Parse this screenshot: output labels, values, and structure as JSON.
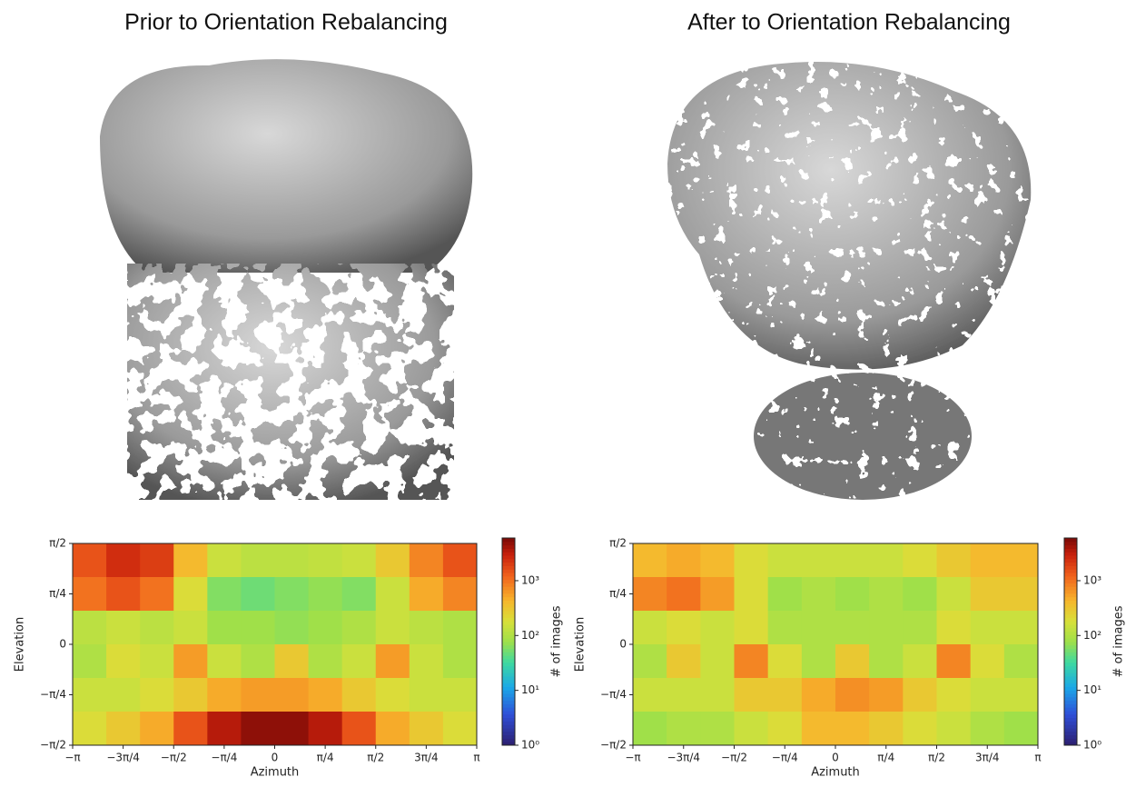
{
  "chart_data": [
    {
      "type": "heatmap",
      "title": "Prior to Orientation Rebalancing",
      "xlabel": "Azimuth",
      "ylabel": "Elevation",
      "colorbar_label": "# of images",
      "colormap": "turbo-like",
      "log_color": true,
      "clim": [
        1,
        6000
      ],
      "xlim": [
        -3.1416,
        3.1416
      ],
      "ylim": [
        -1.5708,
        1.5708
      ],
      "xticks": [
        {
          "value": -3.1416,
          "label": "−π"
        },
        {
          "value": -2.3562,
          "label": "−3π/4"
        },
        {
          "value": -1.5708,
          "label": "−π/2"
        },
        {
          "value": -0.7854,
          "label": "−π/4"
        },
        0,
        {
          "value": 0.7854,
          "label": "π/4"
        },
        {
          "value": 1.5708,
          "label": "π/2"
        },
        {
          "value": 2.3562,
          "label": "3π/4"
        },
        {
          "value": 3.1416,
          "label": "π"
        }
      ],
      "yticks": [
        {
          "value": -1.5708,
          "label": "−π/2"
        },
        {
          "value": -0.7854,
          "label": "−π/4"
        },
        0,
        {
          "value": 0.7854,
          "label": "π/4"
        },
        {
          "value": 1.5708,
          "label": "π/2"
        }
      ],
      "cticks": [
        {
          "value": 1,
          "label": "10⁰"
        },
        {
          "value": 10,
          "label": "10¹"
        },
        {
          "value": 100,
          "label": "10²"
        },
        {
          "value": 1000,
          "label": "10³"
        }
      ],
      "values": [
        [
          1500,
          2500,
          2000,
          400,
          150,
          120,
          120,
          130,
          150,
          300,
          800,
          1500
        ],
        [
          1000,
          1500,
          1000,
          200,
          60,
          50,
          60,
          70,
          60,
          150,
          500,
          800
        ],
        [
          120,
          150,
          120,
          150,
          80,
          80,
          70,
          80,
          100,
          150,
          120,
          100
        ],
        [
          100,
          200,
          150,
          600,
          150,
          100,
          300,
          100,
          150,
          600,
          150,
          100
        ],
        [
          150,
          150,
          200,
          300,
          500,
          600,
          600,
          500,
          300,
          200,
          150,
          150
        ],
        [
          200,
          300,
          500,
          1500,
          3500,
          5000,
          5000,
          3500,
          1500,
          500,
          300,
          200
        ]
      ]
    },
    {
      "type": "heatmap",
      "title": "After to Orientation Rebalancing",
      "xlabel": "Azimuth",
      "ylabel": "Elevation",
      "colorbar_label": "# of images",
      "colormap": "turbo-like",
      "log_color": true,
      "clim": [
        1,
        6000
      ],
      "xlim": [
        -3.1416,
        3.1416
      ],
      "ylim": [
        -1.5708,
        1.5708
      ],
      "xticks": [
        {
          "value": -3.1416,
          "label": "−π"
        },
        {
          "value": -2.3562,
          "label": "−3π/4"
        },
        {
          "value": -1.5708,
          "label": "−π/2"
        },
        {
          "value": -0.7854,
          "label": "−π/4"
        },
        0,
        {
          "value": 0.7854,
          "label": "π/4"
        },
        {
          "value": 1.5708,
          "label": "π/2"
        },
        {
          "value": 2.3562,
          "label": "3π/4"
        },
        {
          "value": 3.1416,
          "label": "π"
        }
      ],
      "yticks": [
        {
          "value": -1.5708,
          "label": "−π/2"
        },
        {
          "value": -0.7854,
          "label": "−π/4"
        },
        0,
        {
          "value": 0.7854,
          "label": "π/4"
        },
        {
          "value": 1.5708,
          "label": "π/2"
        }
      ],
      "cticks": [
        {
          "value": 1,
          "label": "10⁰"
        },
        {
          "value": 10,
          "label": "10¹"
        },
        {
          "value": 100,
          "label": "10²"
        },
        {
          "value": 1000,
          "label": "10³"
        }
      ],
      "values": [
        [
          400,
          500,
          400,
          200,
          150,
          150,
          150,
          150,
          200,
          300,
          400,
          400
        ],
        [
          800,
          1000,
          600,
          200,
          80,
          100,
          80,
          100,
          80,
          150,
          300,
          300
        ],
        [
          150,
          200,
          150,
          200,
          100,
          100,
          100,
          100,
          100,
          200,
          150,
          150
        ],
        [
          100,
          300,
          150,
          800,
          200,
          100,
          300,
          100,
          150,
          800,
          200,
          100
        ],
        [
          150,
          150,
          150,
          300,
          300,
          500,
          700,
          600,
          300,
          200,
          150,
          150
        ],
        [
          80,
          100,
          100,
          150,
          200,
          400,
          400,
          300,
          200,
          150,
          100,
          80
        ]
      ]
    }
  ]
}
